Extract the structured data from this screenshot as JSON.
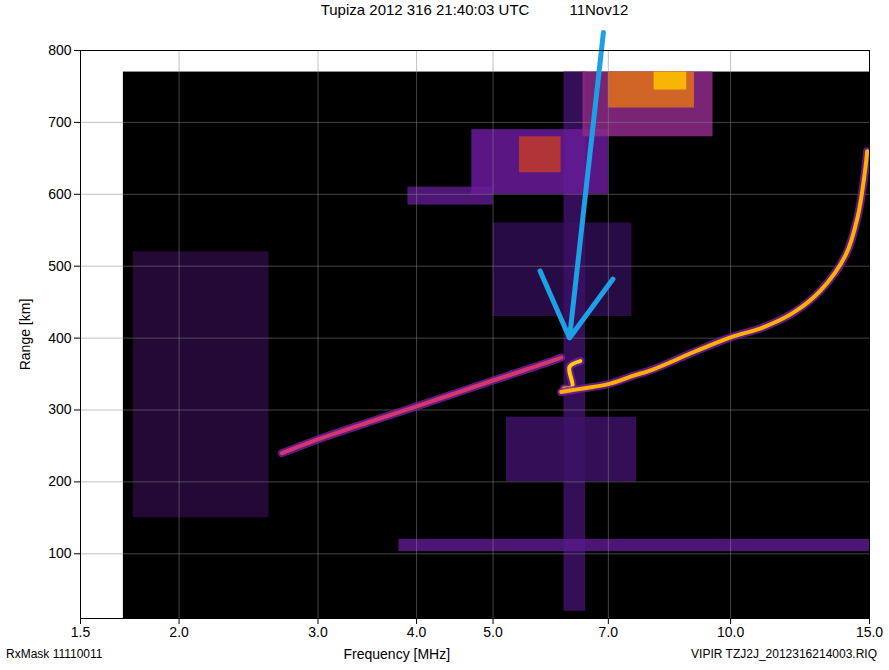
{
  "chart_data": {
    "type": "ionogram",
    "title": "Tupiza 2012 316 21:40:03 UTC",
    "subtitle": "11Nov12",
    "x_label": "Frequency [MHz]",
    "y_label": "Range [km]",
    "log": "x",
    "xlim": [
      1.5,
      15
    ],
    "xticks": [
      1.5,
      {
        "value": 2,
        "label": "2.0"
      },
      {
        "value": 3,
        "label": "3.0"
      },
      {
        "value": 4,
        "label": "4.0"
      },
      {
        "value": 5,
        "label": "5.0"
      },
      {
        "value": 7,
        "label": "7.0"
      },
      {
        "value": 10,
        "label": "10.0"
      },
      {
        "value": 15,
        "label": "15.0"
      }
    ],
    "ylim": [
      10,
      800
    ],
    "yticks": [
      100,
      200,
      300,
      400,
      500,
      600,
      700,
      800
    ],
    "grid": true,
    "annotations": [
      "RxMask 11110011",
      "VIPIR  TZJ2J_2012316214003.RIQ"
    ],
    "background": {
      "freq": [
        1.7,
        15
      ],
      "range": [
        10,
        770
      ],
      "color": "#000000"
    },
    "echo_regions": [
      {
        "freq": [
          1.75,
          2.6
        ],
        "range": [
          150,
          520
        ],
        "color": "#2a0a40"
      },
      {
        "freq": [
          5.0,
          7.5
        ],
        "range": [
          430,
          560
        ],
        "color": "#2e0d50"
      },
      {
        "freq": [
          6.15,
          6.55
        ],
        "range": [
          20,
          770
        ],
        "color": "#3d1266"
      },
      {
        "freq": [
          5.2,
          7.6
        ],
        "range": [
          200,
          290
        ],
        "color": "#3d1266"
      },
      {
        "freq": [
          3.8,
          15
        ],
        "range": [
          103,
          120
        ],
        "color": "#5a1a8a"
      },
      {
        "freq": [
          3.9,
          5.0
        ],
        "range": [
          585,
          610
        ],
        "color": "#5a1a8a"
      },
      {
        "freq": [
          4.7,
          7.0
        ],
        "range": [
          600,
          690
        ],
        "color": "#6a1b9a"
      },
      {
        "freq": [
          5.4,
          6.1
        ],
        "range": [
          630,
          680
        ],
        "color": "#c0392b"
      },
      {
        "freq": [
          6.5,
          9.5
        ],
        "range": [
          680,
          770
        ],
        "color": "#8e2a8a"
      },
      {
        "freq": [
          7.0,
          9.0
        ],
        "range": [
          720,
          770
        ],
        "color": "#e0701a"
      },
      {
        "freq": [
          8.0,
          8.8
        ],
        "range": [
          745,
          770
        ],
        "color": "#ffc300"
      }
    ],
    "series": [
      {
        "color": "#d2386c",
        "x": [
          2.7,
          3.0,
          3.5,
          4.0,
          4.5,
          5.0,
          5.5,
          6.0,
          6.1
        ],
        "values": [
          240,
          259,
          284,
          305,
          324,
          341,
          356,
          370,
          373
        ]
      },
      {
        "color": "#ffd000",
        "x": [
          6.15,
          6.3,
          6.25,
          6.45
        ],
        "values": [
          330,
          332,
          360,
          368
        ]
      },
      {
        "color": "#ffb000",
        "x": [
          6.1,
          6.5,
          7.0,
          7.5,
          8.0,
          9.0,
          10.0,
          11.0,
          12.0,
          13.0,
          14.0,
          14.5,
          14.8,
          14.9
        ],
        "values": [
          325,
          330,
          336,
          347,
          357,
          381,
          401,
          415,
          435,
          466,
          516,
          570,
          631,
          660
        ]
      }
    ],
    "arrow": {
      "from": [
        6.9,
        825
      ],
      "to": [
        6.25,
        400
      ],
      "color": "#1ea0e6"
    }
  }
}
